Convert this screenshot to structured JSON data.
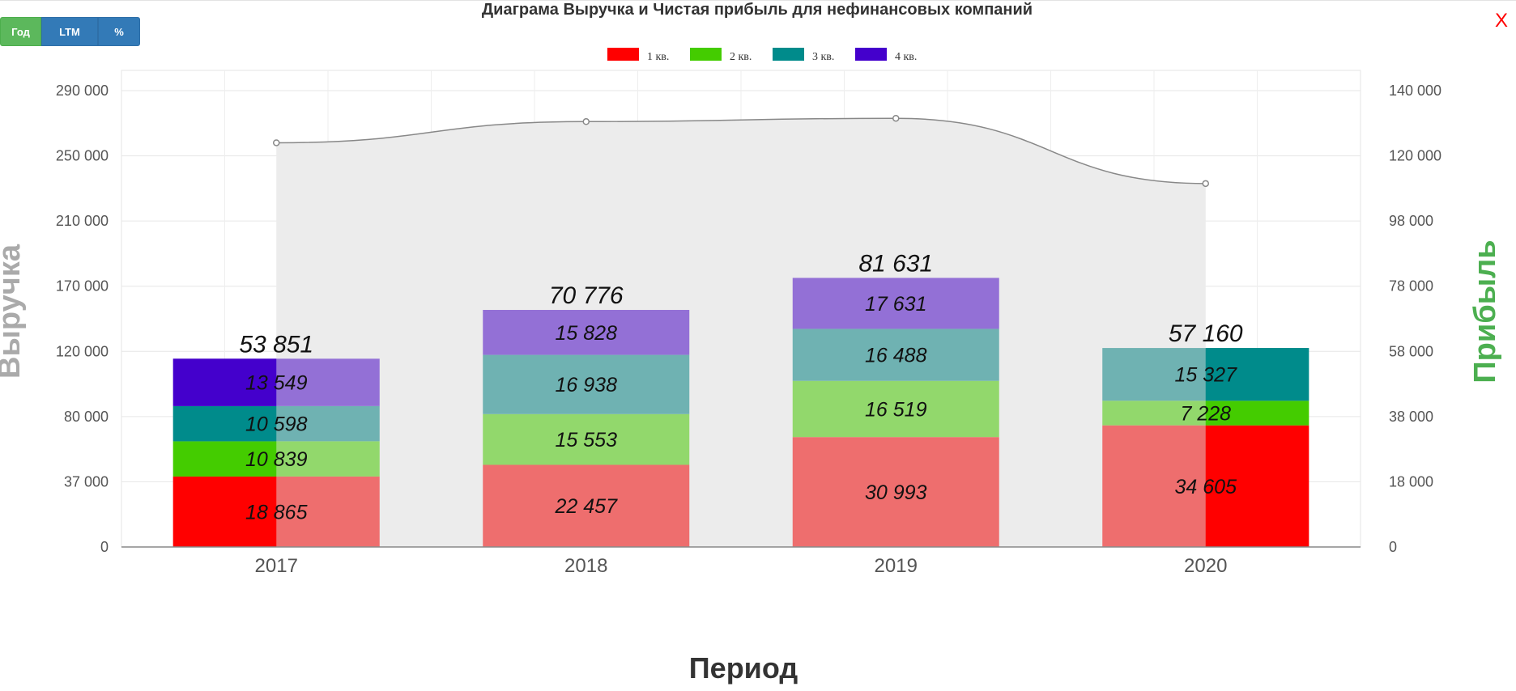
{
  "controls": {
    "year_label": "Год",
    "ltm_label": "LTM",
    "percent_label": "%",
    "close_label": "X"
  },
  "chart_data": {
    "type": "bar",
    "title": "Диаграма Выручка и Чистая прибыль для нефинансовых компаний",
    "xlabel": "Период",
    "ylabel": "Выручка",
    "y2label": "Прибыль",
    "categories": [
      "2017",
      "2018",
      "2019",
      "2020"
    ],
    "stacked": true,
    "series": [
      {
        "name": "1 кв.",
        "color": "#ff0000",
        "values": [
          18865,
          22457,
          30993,
          34605
        ]
      },
      {
        "name": "2 кв.",
        "color": "#44cc00",
        "values": [
          10839,
          15553,
          16519,
          7228
        ]
      },
      {
        "name": "3 кв.",
        "color": "#008b8b",
        "values": [
          10598,
          16938,
          16488,
          15327
        ]
      },
      {
        "name": "4 кв.",
        "color": "#4400cc",
        "values": [
          13549,
          15828,
          17631,
          null
        ]
      }
    ],
    "totals": [
      "53 851",
      "70 776",
      "81 631",
      "57 160"
    ],
    "segment_labels": [
      [
        "18 865",
        "10 839",
        "10 598",
        "13 549"
      ],
      [
        "22 457",
        "15 553",
        "16 938",
        "15 828"
      ],
      [
        "30 993",
        "16 519",
        "16 488",
        "17 631"
      ],
      [
        "34 605",
        "7 228",
        "15 327",
        ""
      ]
    ],
    "line_series": {
      "type": "area",
      "axis": "left",
      "color": "#888888",
      "fill": "#ececec",
      "values": [
        258000,
        271000,
        273000,
        233000
      ]
    },
    "left_axis": {
      "ticks": [
        "0",
        "37 000",
        "80 000",
        "120 000",
        "170 000",
        "210 000",
        "250 000",
        "290 000"
      ],
      "tick_values": [
        0,
        37000,
        80000,
        120000,
        170000,
        210000,
        250000,
        290000
      ]
    },
    "right_axis": {
      "ticks": [
        "0",
        "18 000",
        "38 000",
        "58 000",
        "78 000",
        "98 000",
        "120 000",
        "140 000"
      ],
      "tick_values": [
        0,
        18000,
        38000,
        58000,
        78000,
        98000,
        120000,
        140000
      ]
    },
    "legend": "top-center",
    "grid": true
  }
}
